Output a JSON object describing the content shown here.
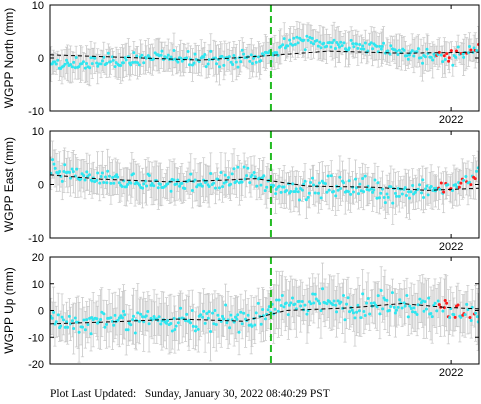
{
  "colors": {
    "point": "#2ee6f0",
    "recent_point": "#ff1a1a",
    "errorbar": "#c8c8c8",
    "trend": "#000000",
    "event_line": "#22bb22",
    "frame": "#000000"
  },
  "footer": {
    "label": "Plot Last Updated:",
    "timestamp": "Sunday, January 30, 2022 08:40:29 PST"
  },
  "chart_data": [
    {
      "type": "scatter",
      "station": "WGPP",
      "component": "North",
      "ylabel": "WGPP North (mm)",
      "ylim": [
        -10,
        10
      ],
      "yticks": [
        "10",
        "0",
        "-10"
      ],
      "xtick_label": "2022",
      "event_line_x_fraction": 0.515,
      "errorbar_mm": 2.5,
      "grid": false,
      "segments": [
        {
          "t": 0.0,
          "value": -1.6
        },
        {
          "t": 0.1,
          "value": -1.0
        },
        {
          "t": 0.2,
          "value": -0.2
        },
        {
          "t": 0.3,
          "value": 0.2
        },
        {
          "t": 0.4,
          "value": -0.4
        },
        {
          "t": 0.48,
          "value": 0.0
        },
        {
          "t": 0.515,
          "value": 1.0
        },
        {
          "t": 0.56,
          "value": 3.0
        },
        {
          "t": 0.62,
          "value": 3.2
        },
        {
          "t": 0.68,
          "value": 2.4
        },
        {
          "t": 0.74,
          "value": 2.2
        },
        {
          "t": 0.8,
          "value": 1.4
        },
        {
          "t": 0.86,
          "value": 0.6
        },
        {
          "t": 0.92,
          "value": 0.0
        },
        {
          "t": 1.0,
          "value": 1.4
        }
      ],
      "trend": [
        {
          "t": 0.0,
          "value": 0.6
        },
        {
          "t": 0.18,
          "value": 0.1
        },
        {
          "t": 0.35,
          "value": -0.4
        },
        {
          "t": 0.5,
          "value": 0.4
        },
        {
          "t": 0.65,
          "value": 1.3
        },
        {
          "t": 0.82,
          "value": 0.9
        },
        {
          "t": 1.0,
          "value": 1.1
        }
      ],
      "scatter_sd": 1.3,
      "recent_start": 0.9
    },
    {
      "type": "scatter",
      "station": "WGPP",
      "component": "East",
      "ylabel": "WGPP East (mm)",
      "ylim": [
        -10,
        10
      ],
      "yticks": [
        "10",
        "0",
        "-10"
      ],
      "xtick_label": "2022",
      "event_line_x_fraction": 0.515,
      "errorbar_mm": 3.0,
      "grid": false,
      "segments": [
        {
          "t": 0.0,
          "value": 3.0
        },
        {
          "t": 0.08,
          "value": 1.2
        },
        {
          "t": 0.18,
          "value": 0.6
        },
        {
          "t": 0.3,
          "value": 0.2
        },
        {
          "t": 0.4,
          "value": 0.4
        },
        {
          "t": 0.46,
          "value": 1.6
        },
        {
          "t": 0.515,
          "value": -0.4
        },
        {
          "t": 0.6,
          "value": -0.8
        },
        {
          "t": 0.7,
          "value": -0.2
        },
        {
          "t": 0.8,
          "value": -1.4
        },
        {
          "t": 0.88,
          "value": -1.0
        },
        {
          "t": 0.94,
          "value": -0.6
        },
        {
          "t": 1.0,
          "value": 1.6
        }
      ],
      "trend": [
        {
          "t": 0.0,
          "value": 1.8
        },
        {
          "t": 0.12,
          "value": 1.0
        },
        {
          "t": 0.28,
          "value": 0.5
        },
        {
          "t": 0.4,
          "value": 0.8
        },
        {
          "t": 0.48,
          "value": 1.1
        },
        {
          "t": 0.6,
          "value": -0.3
        },
        {
          "t": 0.75,
          "value": -0.5
        },
        {
          "t": 0.88,
          "value": -1.1
        },
        {
          "t": 1.0,
          "value": -0.7
        }
      ],
      "scatter_sd": 1.6,
      "recent_start": 0.9
    },
    {
      "type": "scatter",
      "station": "WGPP",
      "component": "Up",
      "ylabel": "WGPP Up (mm)",
      "ylim": [
        -20,
        20
      ],
      "yticks": [
        "20",
        "10",
        "0",
        "-10",
        "-20"
      ],
      "xtick_label": "2022",
      "event_line_x_fraction": 0.515,
      "errorbar_mm": 8.0,
      "grid": false,
      "segments": [
        {
          "t": 0.0,
          "value": -5.0
        },
        {
          "t": 0.12,
          "value": -4.0
        },
        {
          "t": 0.25,
          "value": -3.0
        },
        {
          "t": 0.38,
          "value": -4.0
        },
        {
          "t": 0.48,
          "value": -3.0
        },
        {
          "t": 0.515,
          "value": 1.0
        },
        {
          "t": 0.62,
          "value": 3.0
        },
        {
          "t": 0.72,
          "value": 2.0
        },
        {
          "t": 0.8,
          "value": 3.0
        },
        {
          "t": 0.9,
          "value": 1.0
        },
        {
          "t": 1.0,
          "value": -2.0
        }
      ],
      "trend": [
        {
          "t": 0.0,
          "value": -5.0
        },
        {
          "t": 0.15,
          "value": -4.2
        },
        {
          "t": 0.3,
          "value": -3.2
        },
        {
          "t": 0.45,
          "value": -4.0
        },
        {
          "t": 0.55,
          "value": 0.0
        },
        {
          "t": 0.7,
          "value": 1.0
        },
        {
          "t": 0.82,
          "value": 2.6
        },
        {
          "t": 0.92,
          "value": 1.2
        },
        {
          "t": 1.0,
          "value": 0.6
        }
      ],
      "scatter_sd": 4.2,
      "recent_start": 0.9
    }
  ]
}
